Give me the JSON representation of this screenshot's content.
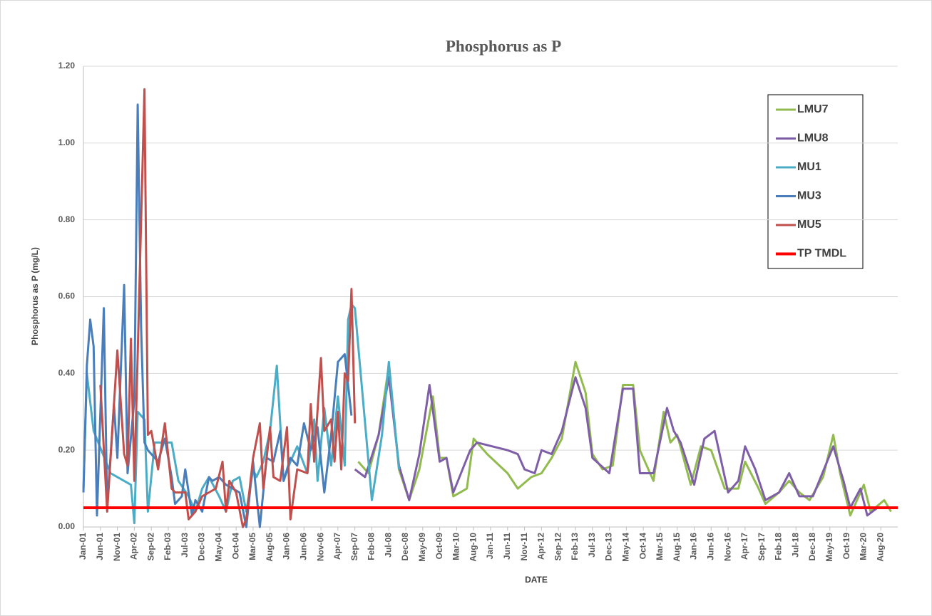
{
  "chart_data": {
    "type": "line",
    "title": "Phosphorus as P",
    "x_label": "DATE",
    "y_label": "Phosphorus as P (mg/L)",
    "xlim": [
      "Jan-01",
      "Dec-20"
    ],
    "ylim": [
      0,
      1.2
    ],
    "yticks": [
      {
        "value": 0,
        "label": "0.00"
      },
      {
        "value": 0.2,
        "label": "0.20"
      },
      {
        "value": 0.4,
        "label": "0.40"
      },
      {
        "value": 0.6,
        "label": "0.60"
      },
      {
        "value": 0.8,
        "label": "0.80"
      },
      {
        "value": 1.0,
        "label": "1.00"
      },
      {
        "value": 1.2,
        "label": "1.20"
      }
    ],
    "xticks": [
      "Jan-01",
      "Jun-01",
      "Nov-01",
      "Apr-02",
      "Sep-02",
      "Feb-03",
      "Jul-03",
      "Dec-03",
      "May-04",
      "Oct-04",
      "Mar-05",
      "Aug-05",
      "Jan-06",
      "Jun-06",
      "Nov-06",
      "Apr-07",
      "Sep-07",
      "Feb-08",
      "Jul-08",
      "Dec-08",
      "May-09",
      "Oct-09",
      "Mar-10",
      "Aug-10",
      "Jan-11",
      "Jun-11",
      "Nov-11",
      "Apr-12",
      "Sep-12",
      "Feb-13",
      "Jul-13",
      "Dec-13",
      "May-14",
      "Oct-14",
      "Mar-15",
      "Aug-15",
      "Jan-16",
      "Jun-16",
      "Nov-16",
      "Apr-17",
      "Sep-17",
      "Feb-18",
      "Jul-18",
      "Dec-18",
      "May-19",
      "Oct-19",
      "Mar-20",
      "Aug-20"
    ],
    "grid": true,
    "legend": "upper right",
    "series": [
      {
        "name": "LMU7",
        "color": "#92bb4f",
        "x": [
          "Oct-07",
          "Jan-08",
          "Apr-08",
          "Jul-08",
          "Oct-08",
          "Jan-09",
          "Apr-09",
          "Aug-09",
          "Oct-09",
          "Dec-09",
          "Feb-10",
          "Jun-10",
          "Aug-10",
          "Dec-10",
          "Jun-11",
          "Sep-11",
          "Jan-12",
          "Apr-12",
          "Jul-12",
          "Oct-12",
          "Feb-13",
          "May-13",
          "Jul-13",
          "Oct-13",
          "Jan-14",
          "Apr-14",
          "Jul-14",
          "Sep-14",
          "Jan-15",
          "Apr-15",
          "Jun-15",
          "Aug-15",
          "Dec-15",
          "Mar-16",
          "Jun-16",
          "Oct-16",
          "Feb-17",
          "Apr-17",
          "Aug-17",
          "Oct-17",
          "Feb-18",
          "May-18",
          "Aug-18",
          "Nov-18",
          "Mar-19",
          "Jun-19",
          "Aug-19",
          "Nov-19",
          "Mar-20",
          "May-20",
          "Sep-20",
          "Nov-20"
        ],
        "values": [
          0.17,
          0.14,
          0.24,
          0.42,
          0.15,
          0.07,
          0.15,
          0.34,
          0.18,
          0.18,
          0.08,
          0.1,
          0.23,
          0.19,
          0.14,
          0.1,
          0.13,
          0.14,
          0.18,
          0.23,
          0.43,
          0.35,
          0.19,
          0.15,
          0.16,
          0.37,
          0.37,
          0.2,
          0.12,
          0.3,
          0.22,
          0.24,
          0.11,
          0.21,
          0.2,
          0.1,
          0.1,
          0.17,
          0.1,
          0.06,
          0.09,
          0.12,
          0.09,
          0.07,
          0.13,
          0.24,
          0.14,
          0.03,
          0.11,
          0.04,
          0.07,
          0.04
        ]
      },
      {
        "name": "LMU8",
        "color": "#7f5ea8",
        "x": [
          "Sep-07",
          "Dec-07",
          "Apr-08",
          "Jul-08",
          "Oct-08",
          "Jan-09",
          "Apr-09",
          "Jul-09",
          "Oct-09",
          "Dec-09",
          "Feb-10",
          "Jul-10",
          "Sep-10",
          "Jun-11",
          "Sep-11",
          "Nov-11",
          "Feb-12",
          "Apr-12",
          "Jul-12",
          "Oct-12",
          "Feb-13",
          "May-13",
          "Jul-13",
          "Dec-13",
          "Apr-14",
          "Jul-14",
          "Sep-14",
          "Jan-15",
          "May-15",
          "Jul-15",
          "Sep-15",
          "Jan-16",
          "Apr-16",
          "Jul-16",
          "Nov-16",
          "Feb-17",
          "Apr-17",
          "Jul-17",
          "Oct-17",
          "Feb-18",
          "May-18",
          "Aug-18",
          "Dec-18",
          "Jun-19",
          "Sep-19",
          "Nov-19",
          "Feb-20",
          "Apr-20",
          "Jul-20",
          "Oct-20"
        ],
        "values": [
          0.15,
          0.13,
          0.24,
          0.39,
          0.16,
          0.07,
          0.19,
          0.37,
          0.17,
          0.18,
          0.09,
          0.2,
          0.22,
          0.2,
          0.19,
          0.15,
          0.14,
          0.2,
          0.19,
          0.25,
          0.39,
          0.31,
          0.18,
          0.14,
          0.36,
          0.36,
          0.14,
          0.14,
          0.31,
          0.25,
          0.22,
          0.11,
          0.23,
          0.25,
          0.09,
          0.12,
          0.21,
          0.15,
          0.07,
          0.09,
          0.14,
          0.08,
          0.08,
          0.21,
          0.12,
          0.05,
          0.1,
          0.03,
          0.05,
          0.05
        ]
      },
      {
        "name": "MU1",
        "color": "#4bacc6",
        "x": [
          "Jan-01",
          "Feb-01",
          "Apr-01",
          "Sep-01",
          "Nov-01",
          "Mar-02",
          "Apr-02",
          "May-02",
          "Jul-02",
          "Aug-02",
          "Oct-02",
          "Jan-03",
          "Mar-03",
          "May-03",
          "Aug-03",
          "Oct-03",
          "Dec-03",
          "Feb-04",
          "May-04",
          "Jul-04",
          "Sep-04",
          "Nov-04",
          "Jan-05",
          "Mar-05",
          "Apr-05",
          "Jun-05",
          "Aug-05",
          "Oct-05",
          "Dec-05",
          "Feb-06",
          "Apr-06",
          "Jul-06",
          "Sep-06",
          "Oct-06",
          "Dec-06",
          "Feb-07",
          "Apr-07",
          "Jun-07",
          "Jul-07",
          "Aug-07",
          "Sep-07",
          "Feb-08",
          "May-08",
          "Jul-08",
          "Oct-08"
        ],
        "values": [
          0.1,
          0.4,
          0.25,
          0.14,
          0.13,
          0.11,
          0.01,
          0.3,
          0.28,
          0.04,
          0.22,
          0.22,
          0.22,
          0.12,
          0.08,
          0.04,
          0.1,
          0.13,
          0.08,
          0.04,
          0.12,
          0.13,
          0.04,
          0.15,
          0.13,
          0.17,
          0.25,
          0.42,
          0.12,
          0.17,
          0.21,
          0.14,
          0.28,
          0.12,
          0.31,
          0.16,
          0.34,
          0.16,
          0.54,
          0.58,
          0.57,
          0.07,
          0.24,
          0.43,
          0.15
        ]
      },
      {
        "name": "MU3",
        "color": "#4a7ebb",
        "x": [
          "Jan-01",
          "Feb-01",
          "Mar-01",
          "Apr-01",
          "May-01",
          "Jul-01",
          "Aug-01",
          "Oct-01",
          "Nov-01",
          "Jan-02",
          "Feb-02",
          "Apr-02",
          "May-02",
          "Jun-02",
          "Jul-02",
          "Aug-02",
          "Nov-02",
          "Jan-03",
          "Mar-03",
          "Apr-03",
          "Jun-03",
          "Jul-03",
          "Sep-03",
          "Oct-03",
          "Dec-03",
          "Feb-04",
          "Mar-04",
          "May-04",
          "Jul-04",
          "Sep-04",
          "Nov-04",
          "Jan-05",
          "Mar-05",
          "May-05",
          "Jul-05",
          "Sep-05",
          "Nov-05",
          "Dec-05",
          "Feb-06",
          "Apr-06",
          "Jun-06",
          "Aug-06",
          "Oct-06",
          "Dec-06",
          "Feb-07",
          "Apr-07",
          "Jun-07",
          "Aug-07"
        ],
        "values": [
          0.09,
          0.42,
          0.54,
          0.47,
          0.03,
          0.57,
          0.05,
          0.32,
          0.18,
          0.63,
          0.14,
          0.33,
          1.1,
          0.52,
          0.22,
          0.2,
          0.17,
          0.23,
          0.13,
          0.06,
          0.08,
          0.15,
          0.03,
          0.07,
          0.04,
          0.13,
          0.12,
          0.13,
          0.11,
          0.1,
          0.09,
          0.0,
          0.17,
          0.0,
          0.18,
          0.17,
          0.25,
          0.12,
          0.18,
          0.16,
          0.27,
          0.2,
          0.26,
          0.09,
          0.24,
          0.43,
          0.45,
          0.29
        ]
      },
      {
        "name": "MU5",
        "color": "#c0504d",
        "x": [
          "Jun-01",
          "Aug-01",
          "Nov-01",
          "Jan-02",
          "Feb-02",
          "Mar-02",
          "Apr-02",
          "May-02",
          "Jul-02",
          "Aug-02",
          "Sep-02",
          "Nov-02",
          "Jan-03",
          "Mar-03",
          "Apr-03",
          "Jun-03",
          "Jul-03",
          "Aug-03",
          "Oct-03",
          "Dec-03",
          "Feb-04",
          "Apr-04",
          "Jun-04",
          "Jul-04",
          "Aug-04",
          "Oct-04",
          "Dec-04",
          "Jan-05",
          "Mar-05",
          "May-05",
          "Jun-05",
          "Aug-05",
          "Sep-05",
          "Nov-05",
          "Jan-06",
          "Feb-06",
          "Apr-06",
          "Jul-06",
          "Aug-06",
          "Sep-06",
          "Nov-06",
          "Dec-06",
          "Feb-07",
          "Mar-07",
          "Apr-07",
          "May-07",
          "Jun-07",
          "Jul-07",
          "Aug-07",
          "Sep-07"
        ],
        "values": [
          0.37,
          0.04,
          0.46,
          0.19,
          0.16,
          0.49,
          0.12,
          0.45,
          1.14,
          0.24,
          0.25,
          0.15,
          0.27,
          0.1,
          0.09,
          0.09,
          0.09,
          0.02,
          0.04,
          0.08,
          0.09,
          0.1,
          0.17,
          0.04,
          0.12,
          0.09,
          0.0,
          0.02,
          0.18,
          0.27,
          0.1,
          0.26,
          0.13,
          0.12,
          0.26,
          0.02,
          0.15,
          0.14,
          0.32,
          0.17,
          0.44,
          0.25,
          0.28,
          0.17,
          0.3,
          0.15,
          0.4,
          0.38,
          0.62,
          0.27
        ]
      }
    ],
    "reference_line": {
      "name": "TP TMDL",
      "value": 0.05,
      "color": "#ff0000"
    }
  }
}
